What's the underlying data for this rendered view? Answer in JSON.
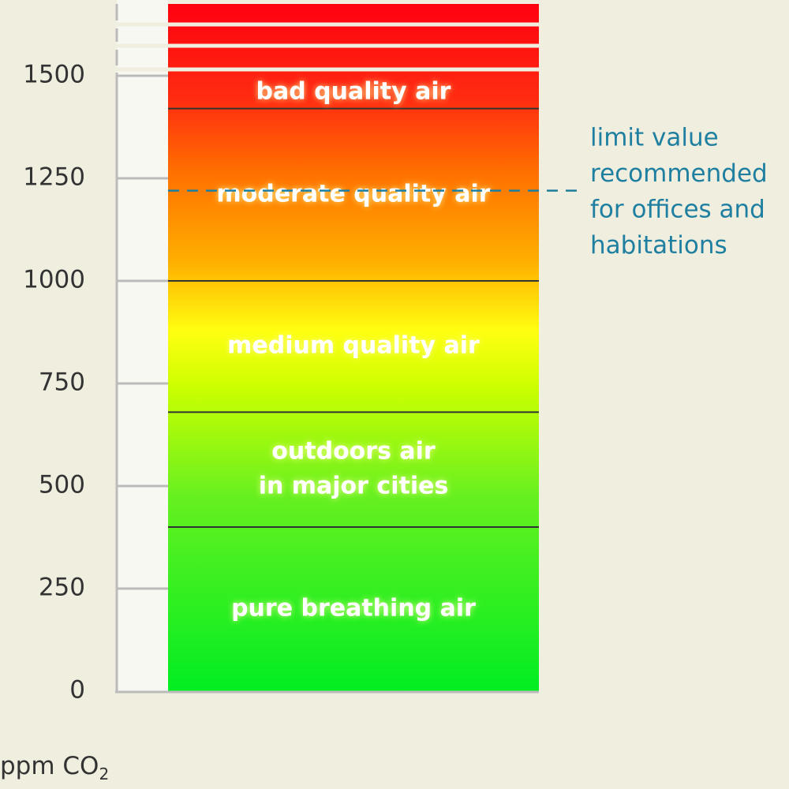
{
  "chart_data": {
    "type": "band",
    "y_label": "ppm CO",
    "y_label_sub": "2",
    "ylim": [
      0,
      1500
    ],
    "yticks": [
      0,
      250,
      500,
      750,
      1000,
      1250,
      1500
    ],
    "categories": [
      [
        "pure breathing air"
      ],
      [
        "outdoors air",
        "in major cities"
      ],
      [
        "medium quality air"
      ],
      [
        "moderate quality air"
      ],
      [
        "bad quality air"
      ]
    ],
    "boundaries": [
      400,
      680,
      1000,
      1420
    ],
    "limit": {
      "value": 1220,
      "label": [
        "limit value",
        "recommended",
        "for offices and",
        "habitations"
      ],
      "color": "#1f7fa0"
    }
  }
}
